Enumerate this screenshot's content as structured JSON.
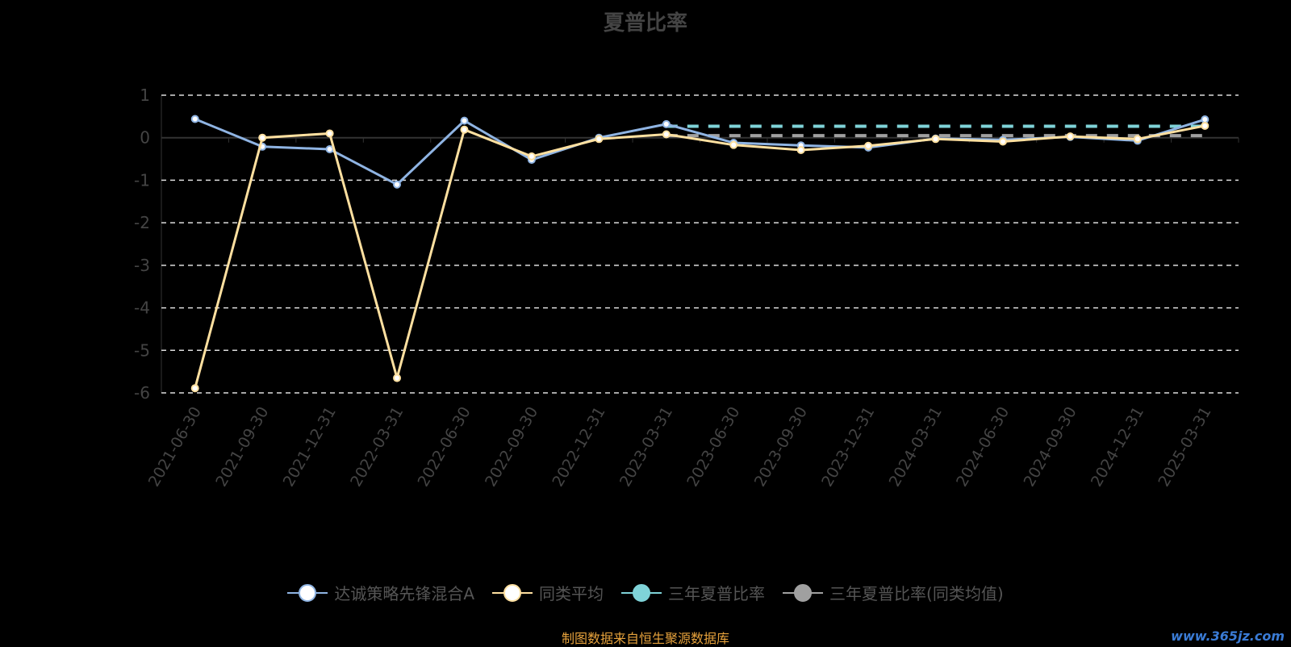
{
  "chart_data": {
    "type": "line",
    "title": "夏普比率",
    "categories": [
      "2021-06-30",
      "2021-09-30",
      "2021-12-31",
      "2022-03-31",
      "2022-06-30",
      "2022-09-30",
      "2022-12-31",
      "2023-03-31",
      "2023-06-30",
      "2023-09-30",
      "2023-12-31",
      "2024-03-31",
      "2024-06-30",
      "2024-09-30",
      "2024-12-31",
      "2025-03-31"
    ],
    "ylim": [
      -6,
      1
    ],
    "yticks": [
      1,
      0,
      -1,
      -2,
      -3,
      -4,
      -5,
      -6
    ],
    "grid": true,
    "legend_position": "bottom",
    "series": [
      {
        "name": "达诚策略先锋混合A",
        "color": "#8fb4e3",
        "values": [
          0.44,
          -0.21,
          -0.27,
          -1.1,
          0.4,
          -0.52,
          0.0,
          0.32,
          -0.12,
          -0.18,
          -0.23,
          -0.02,
          -0.05,
          0.02,
          -0.07,
          0.43
        ]
      },
      {
        "name": "同类平均",
        "color": "#ffe0a0",
        "values": [
          -5.89,
          0.0,
          0.1,
          -5.65,
          0.19,
          -0.44,
          -0.03,
          0.08,
          -0.17,
          -0.29,
          -0.19,
          -0.03,
          -0.09,
          0.03,
          -0.03,
          0.28
        ]
      },
      {
        "name": "三年夏普比率",
        "color": "#7fd3d8",
        "dashed": true,
        "values": [
          null,
          null,
          null,
          null,
          null,
          null,
          null,
          0.27,
          0.27,
          0.27,
          0.27,
          0.27,
          0.27,
          0.27,
          0.27,
          0.27
        ]
      },
      {
        "name": "三年夏普比率(同类均值)",
        "color": "#a0a0a0",
        "dashed": true,
        "values": [
          null,
          null,
          null,
          null,
          null,
          null,
          null,
          0.05,
          0.05,
          0.05,
          0.05,
          0.05,
          0.05,
          0.05,
          0.05,
          0.05
        ]
      }
    ]
  },
  "source": "制图数据来自恒生聚源数据库",
  "watermark": "www.365jz.com"
}
